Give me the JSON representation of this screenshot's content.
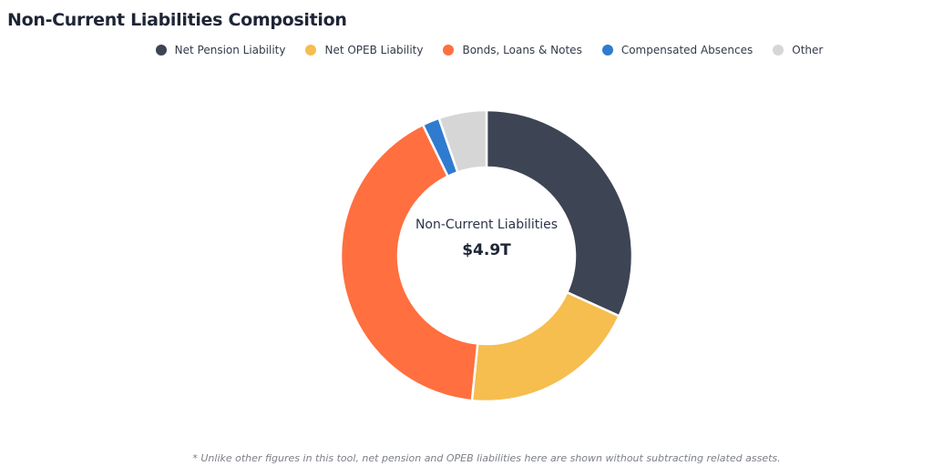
{
  "chart_data": {
    "type": "pie",
    "variant": "donut",
    "title": "Non-Current Liabilities Composition",
    "center_label": "Non-Current Liabilities",
    "center_value": "$4.9T",
    "legend_position": "top",
    "series": [
      {
        "name": "Net Pension Liability",
        "value": 31.8,
        "color": "#3d4453"
      },
      {
        "name": "Net OPEB Liability",
        "value": 19.8,
        "color": "#f6bd4f"
      },
      {
        "name": "Bonds, Loans & Notes",
        "value": 41.2,
        "color": "#ff6f3f"
      },
      {
        "name": "Compensated Absences",
        "value": 1.9,
        "color": "#2f7bd0"
      },
      {
        "name": "Other",
        "value": 5.3,
        "color": "#d6d6d6"
      }
    ],
    "value_unit": "percent of total (estimated)",
    "footnote": "* Unlike other figures in this tool, net pension and OPEB liabilities here are shown without subtracting related assets."
  }
}
